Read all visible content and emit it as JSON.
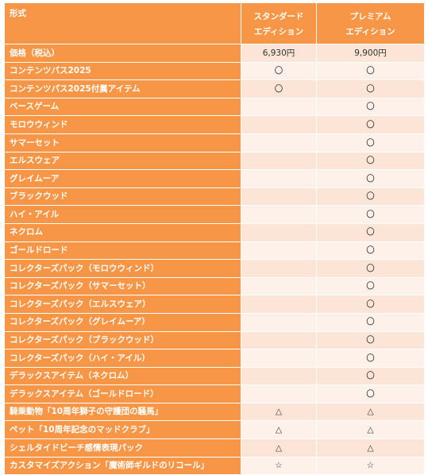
{
  "table": {
    "header": {
      "label": "形式",
      "standard": [
        "スタンダード",
        "エディション"
      ],
      "premium": [
        "プレミアム",
        "エディション"
      ]
    },
    "rows": [
      {
        "label": "価格（税込）",
        "standard": "6,930円",
        "premium": "9,900円"
      },
      {
        "label": "コンテンツパス2025",
        "standard": "〇",
        "premium": "〇"
      },
      {
        "label": "コンテンツパス2025付属アイテム",
        "standard": "〇",
        "premium": "〇"
      },
      {
        "label": "ベースゲーム",
        "standard": "",
        "premium": "〇"
      },
      {
        "label": "モロウウィンド",
        "standard": "",
        "premium": "〇"
      },
      {
        "label": "サマーセット",
        "standard": "",
        "premium": "〇"
      },
      {
        "label": "エルスウェア",
        "standard": "",
        "premium": "〇"
      },
      {
        "label": "グレイムーア",
        "standard": "",
        "premium": "〇"
      },
      {
        "label": "ブラックウッド",
        "standard": "",
        "premium": "〇"
      },
      {
        "label": "ハイ・アイル",
        "standard": "",
        "premium": "〇"
      },
      {
        "label": "ネクロム",
        "standard": "",
        "premium": "〇"
      },
      {
        "label": "ゴールドロード",
        "standard": "",
        "premium": "〇"
      },
      {
        "label": "コレクターズパック（モロウウィンド）",
        "standard": "",
        "premium": "〇"
      },
      {
        "label": "コレクターズパック（サマーセット）",
        "standard": "",
        "premium": "〇"
      },
      {
        "label": "コレクターズパック（エルスウェア）",
        "standard": "",
        "premium": "〇"
      },
      {
        "label": "コレクターズパック（グレイムーア）",
        "standard": "",
        "premium": "〇"
      },
      {
        "label": "コレクターズパック（ブラックウッド）",
        "standard": "",
        "premium": "〇"
      },
      {
        "label": "コレクターズパック（ハイ・アイル）",
        "standard": "",
        "premium": "〇"
      },
      {
        "label": "デラックスアイテム（ネクロム）",
        "standard": "",
        "premium": "〇"
      },
      {
        "label": "デラックスアイテム（ゴールドロード）",
        "standard": "",
        "premium": "〇"
      },
      {
        "label": "騎乗動物「10周年獅子の守護団の騒馬」",
        "standard": "△",
        "premium": "△"
      },
      {
        "label": "ペット「10周年記念のマッドクラブ」",
        "standard": "△",
        "premium": "△"
      },
      {
        "label": "シェルタイドビーチ感情表現パック",
        "standard": "△",
        "premium": "△"
      },
      {
        "label": "カスタマイズアクション「魔術師ギルドのリコール」",
        "standard": "☆",
        "premium": "☆"
      }
    ]
  }
}
